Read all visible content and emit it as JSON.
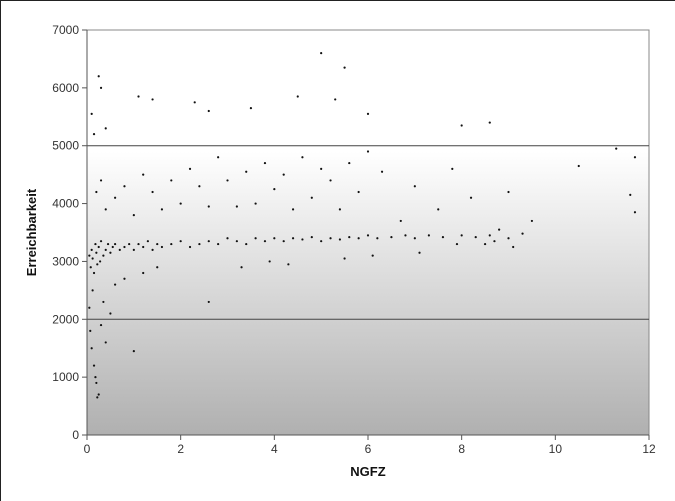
{
  "chart_data": {
    "type": "scatter",
    "title": "",
    "xlabel": "NGFZ",
    "ylabel": "Erreichbarkeit",
    "xlim": [
      0,
      12
    ],
    "ylim": [
      0,
      7000
    ],
    "x_ticks": [
      0,
      2,
      4,
      6,
      8,
      10,
      12
    ],
    "y_ticks": [
      0,
      1000,
      2000,
      3000,
      4000,
      5000,
      6000,
      7000
    ],
    "reference_lines": [
      2000,
      5000
    ],
    "grid": false,
    "background": "gradient white to grey",
    "marker_color": "#111111",
    "series": [
      {
        "points": [
          [
            0.05,
            3100
          ],
          [
            0.08,
            2900
          ],
          [
            0.1,
            3200
          ],
          [
            0.12,
            3050
          ],
          [
            0.15,
            2800
          ],
          [
            0.18,
            3300
          ],
          [
            0.2,
            3150
          ],
          [
            0.22,
            2950
          ],
          [
            0.25,
            3250
          ],
          [
            0.28,
            3000
          ],
          [
            0.3,
            3350
          ],
          [
            0.35,
            3100
          ],
          [
            0.4,
            3200
          ],
          [
            0.45,
            3300
          ],
          [
            0.5,
            3150
          ],
          [
            0.55,
            3250
          ],
          [
            0.6,
            3300
          ],
          [
            0.7,
            3200
          ],
          [
            0.8,
            3250
          ],
          [
            0.9,
            3300
          ],
          [
            1.0,
            3200
          ],
          [
            1.1,
            3300
          ],
          [
            1.2,
            3250
          ],
          [
            1.3,
            3350
          ],
          [
            1.4,
            3200
          ],
          [
            1.5,
            3300
          ],
          [
            1.6,
            3250
          ],
          [
            1.8,
            3300
          ],
          [
            2.0,
            3350
          ],
          [
            2.2,
            3250
          ],
          [
            2.4,
            3300
          ],
          [
            2.6,
            3350
          ],
          [
            2.8,
            3300
          ],
          [
            3.0,
            3400
          ],
          [
            3.2,
            3350
          ],
          [
            3.4,
            3300
          ],
          [
            3.6,
            3400
          ],
          [
            3.8,
            3350
          ],
          [
            4.0,
            3400
          ],
          [
            4.2,
            3350
          ],
          [
            4.4,
            3400
          ],
          [
            4.6,
            3380
          ],
          [
            4.8,
            3420
          ],
          [
            5.0,
            3350
          ],
          [
            5.2,
            3400
          ],
          [
            5.4,
            3380
          ],
          [
            5.6,
            3420
          ],
          [
            5.8,
            3400
          ],
          [
            6.0,
            3450
          ],
          [
            6.2,
            3400
          ],
          [
            6.5,
            3420
          ],
          [
            6.8,
            3450
          ],
          [
            7.0,
            3400
          ],
          [
            7.3,
            3450
          ],
          [
            7.6,
            3420
          ],
          [
            8.0,
            3450
          ],
          [
            8.3,
            3420
          ],
          [
            8.6,
            3450
          ],
          [
            9.0,
            3400
          ],
          [
            9.3,
            3480
          ],
          [
            0.05,
            2200
          ],
          [
            0.07,
            1800
          ],
          [
            0.1,
            1500
          ],
          [
            0.12,
            2500
          ],
          [
            0.15,
            1200
          ],
          [
            0.18,
            1000
          ],
          [
            0.2,
            900
          ],
          [
            0.22,
            650
          ],
          [
            0.25,
            700
          ],
          [
            0.3,
            1900
          ],
          [
            0.35,
            2300
          ],
          [
            0.4,
            1600
          ],
          [
            0.5,
            2100
          ],
          [
            0.6,
            2600
          ],
          [
            0.8,
            2700
          ],
          [
            1.0,
            1450
          ],
          [
            1.2,
            2800
          ],
          [
            1.5,
            2900
          ],
          [
            2.6,
            2300
          ],
          [
            0.1,
            5550
          ],
          [
            0.15,
            5200
          ],
          [
            0.25,
            6200
          ],
          [
            0.3,
            6000
          ],
          [
            0.4,
            5300
          ],
          [
            1.1,
            5850
          ],
          [
            1.4,
            5800
          ],
          [
            2.3,
            5750
          ],
          [
            2.6,
            5600
          ],
          [
            3.5,
            5650
          ],
          [
            4.5,
            5850
          ],
          [
            5.0,
            6600
          ],
          [
            5.3,
            5800
          ],
          [
            5.5,
            6350
          ],
          [
            6.0,
            5550
          ],
          [
            8.0,
            5350
          ],
          [
            8.6,
            5400
          ],
          [
            10.5,
            4650
          ],
          [
            11.3,
            4950
          ],
          [
            11.6,
            4150
          ],
          [
            11.7,
            3850
          ],
          [
            11.7,
            4800
          ],
          [
            9.5,
            3700
          ],
          [
            9.0,
            4200
          ],
          [
            8.8,
            3550
          ],
          [
            8.5,
            3300
          ],
          [
            8.2,
            4100
          ],
          [
            7.8,
            4600
          ],
          [
            7.5,
            3900
          ],
          [
            7.0,
            4300
          ],
          [
            6.7,
            3700
          ],
          [
            6.3,
            4550
          ],
          [
            6.0,
            4900
          ],
          [
            5.8,
            4200
          ],
          [
            5.6,
            4700
          ],
          [
            5.4,
            3900
          ],
          [
            5.2,
            4400
          ],
          [
            5.0,
            4600
          ],
          [
            4.8,
            4100
          ],
          [
            4.6,
            4800
          ],
          [
            4.4,
            3900
          ],
          [
            4.2,
            4500
          ],
          [
            4.0,
            4250
          ],
          [
            3.8,
            4700
          ],
          [
            3.6,
            4000
          ],
          [
            3.4,
            4550
          ],
          [
            3.2,
            3950
          ],
          [
            3.0,
            4400
          ],
          [
            2.8,
            4800
          ],
          [
            2.6,
            3950
          ],
          [
            2.4,
            4300
          ],
          [
            2.2,
            4600
          ],
          [
            2.0,
            4000
          ],
          [
            1.8,
            4400
          ],
          [
            1.6,
            3900
          ],
          [
            1.4,
            4200
          ],
          [
            1.2,
            4500
          ],
          [
            1.0,
            3800
          ],
          [
            0.8,
            4300
          ],
          [
            0.6,
            4100
          ],
          [
            0.4,
            3900
          ],
          [
            0.3,
            4400
          ],
          [
            0.2,
            4200
          ],
          [
            3.3,
            2900
          ],
          [
            3.9,
            3000
          ],
          [
            4.3,
            2950
          ],
          [
            5.5,
            3050
          ],
          [
            6.1,
            3100
          ],
          [
            7.1,
            3150
          ],
          [
            7.9,
            3300
          ],
          [
            8.7,
            3350
          ],
          [
            9.1,
            3250
          ]
        ]
      }
    ]
  }
}
